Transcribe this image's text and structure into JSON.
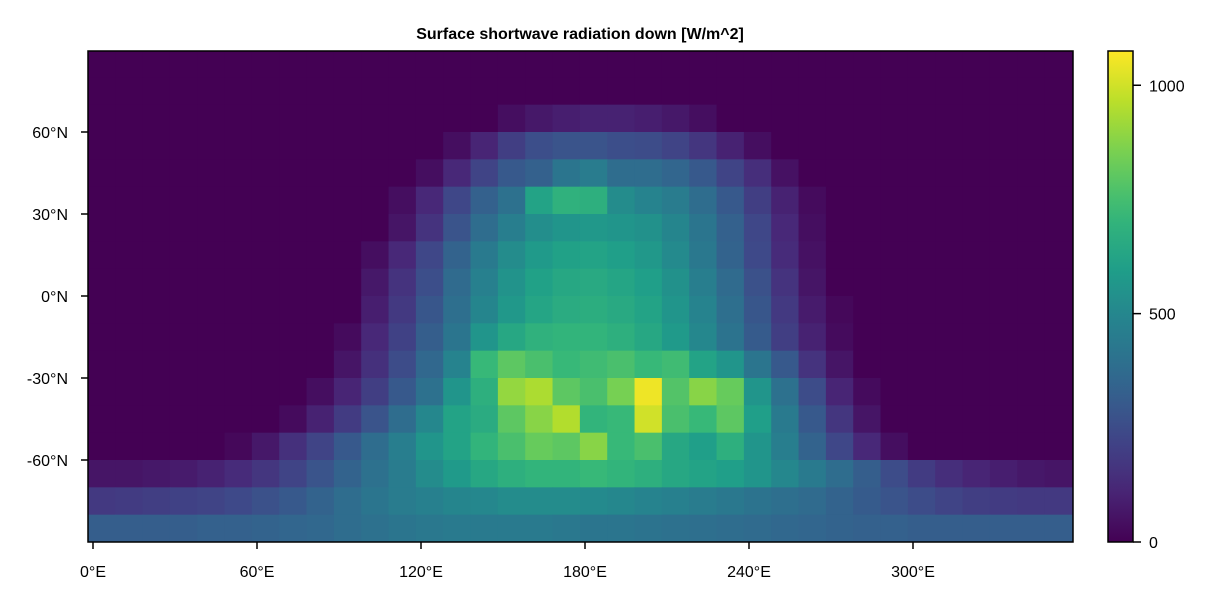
{
  "chart_data": {
    "type": "heatmap",
    "title": "Surface shortwave radiation down [W/m^2]",
    "xlabel": "",
    "ylabel": "",
    "x_ticks": [
      {
        "value": 0,
        "label": "0°E"
      },
      {
        "value": 60,
        "label": "60°E"
      },
      {
        "value": 120,
        "label": "120°E"
      },
      {
        "value": 180,
        "label": "180°E"
      },
      {
        "value": 240,
        "label": "240°E"
      },
      {
        "value": 300,
        "label": "300°E"
      }
    ],
    "y_ticks": [
      {
        "value": 60,
        "label": "60°N"
      },
      {
        "value": 30,
        "label": "30°N"
      },
      {
        "value": 0,
        "label": "0°N"
      },
      {
        "value": -30,
        "label": "-30°N"
      },
      {
        "value": -60,
        "label": "-60°N"
      }
    ],
    "xlim": [
      -1.875,
      358.125
    ],
    "ylim": [
      -90,
      90
    ],
    "lon_start": -1.875,
    "lon_step": 10,
    "lat_centers": [
      85,
      75,
      65,
      55,
      45,
      35,
      25,
      15,
      5,
      -5,
      -15,
      -25,
      -35,
      -45,
      -55,
      -65,
      -75,
      -85
    ],
    "colormap": "viridis",
    "colorbar": {
      "range": [
        0,
        1075
      ],
      "ticks": [
        {
          "value": 0,
          "label": "0"
        },
        {
          "value": 500,
          "label": "500"
        },
        {
          "value": 1000,
          "label": "1000"
        }
      ]
    },
    "values": [
      [
        0,
        0,
        0,
        0,
        0,
        0,
        0,
        0,
        0,
        0,
        0,
        0,
        0,
        0,
        0,
        0,
        0,
        0,
        0,
        0,
        0,
        0,
        0,
        0,
        0,
        0,
        0,
        0,
        0,
        0,
        0,
        0,
        0,
        0,
        0,
        0
      ],
      [
        0,
        0,
        0,
        0,
        0,
        0,
        0,
        0,
        0,
        0,
        0,
        0,
        0,
        0,
        0,
        0,
        0,
        0,
        0,
        0,
        0,
        0,
        0,
        0,
        0,
        0,
        0,
        0,
        0,
        0,
        0,
        0,
        0,
        0,
        0,
        0
      ],
      [
        0,
        0,
        0,
        0,
        0,
        0,
        0,
        0,
        0,
        0,
        0,
        0,
        0,
        0,
        0,
        40,
        70,
        90,
        100,
        100,
        90,
        70,
        40,
        0,
        0,
        0,
        0,
        0,
        0,
        0,
        0,
        0,
        0,
        0,
        0,
        0
      ],
      [
        0,
        0,
        0,
        0,
        0,
        0,
        0,
        0,
        0,
        0,
        0,
        0,
        0,
        40,
        110,
        200,
        260,
        280,
        280,
        260,
        250,
        220,
        170,
        100,
        40,
        0,
        0,
        0,
        0,
        0,
        0,
        0,
        0,
        0,
        0,
        0
      ],
      [
        0,
        0,
        0,
        0,
        0,
        0,
        0,
        0,
        0,
        0,
        0,
        0,
        40,
        120,
        220,
        300,
        330,
        420,
        450,
        380,
        380,
        350,
        300,
        220,
        140,
        50,
        0,
        0,
        0,
        0,
        0,
        0,
        0,
        0,
        0,
        0
      ],
      [
        0,
        0,
        0,
        0,
        0,
        0,
        0,
        0,
        0,
        0,
        0,
        40,
        120,
        230,
        330,
        400,
        620,
        690,
        680,
        520,
        480,
        450,
        380,
        300,
        200,
        100,
        30,
        0,
        0,
        0,
        0,
        0,
        0,
        0,
        0,
        0
      ],
      [
        0,
        0,
        0,
        0,
        0,
        0,
        0,
        0,
        0,
        0,
        0,
        60,
        160,
        280,
        380,
        460,
        530,
        560,
        570,
        560,
        540,
        490,
        420,
        330,
        230,
        120,
        40,
        0,
        0,
        0,
        0,
        0,
        0,
        0,
        0,
        0
      ],
      [
        0,
        0,
        0,
        0,
        0,
        0,
        0,
        0,
        0,
        0,
        40,
        120,
        230,
        340,
        440,
        520,
        580,
        610,
        620,
        600,
        570,
        510,
        430,
        340,
        240,
        130,
        50,
        0,
        0,
        0,
        0,
        0,
        0,
        0,
        0,
        0
      ],
      [
        0,
        0,
        0,
        0,
        0,
        0,
        0,
        0,
        0,
        0,
        70,
        160,
        260,
        370,
        470,
        550,
        610,
        640,
        650,
        630,
        600,
        540,
        460,
        370,
        270,
        160,
        60,
        0,
        0,
        0,
        0,
        0,
        0,
        0,
        0,
        0
      ],
      [
        0,
        0,
        0,
        0,
        0,
        0,
        0,
        0,
        0,
        0,
        90,
        180,
        290,
        390,
        490,
        570,
        630,
        660,
        670,
        650,
        620,
        560,
        480,
        390,
        290,
        180,
        80,
        20,
        0,
        0,
        0,
        0,
        0,
        0,
        0,
        0
      ],
      [
        0,
        0,
        0,
        0,
        0,
        0,
        0,
        0,
        0,
        30,
        120,
        210,
        320,
        420,
        560,
        640,
        690,
        700,
        700,
        680,
        640,
        580,
        500,
        410,
        310,
        200,
        100,
        30,
        0,
        0,
        0,
        0,
        0,
        0,
        0,
        0
      ],
      [
        0,
        0,
        0,
        0,
        0,
        0,
        0,
        0,
        0,
        60,
        150,
        250,
        360,
        480,
        720,
        800,
        760,
        720,
        740,
        760,
        720,
        740,
        620,
        560,
        420,
        300,
        160,
        60,
        0,
        0,
        0,
        0,
        0,
        0,
        0,
        0
      ],
      [
        0,
        0,
        0,
        0,
        0,
        0,
        0,
        0,
        40,
        110,
        200,
        300,
        400,
        560,
        680,
        900,
        940,
        800,
        760,
        850,
        1050,
        780,
        880,
        820,
        560,
        400,
        250,
        110,
        30,
        0,
        0,
        0,
        0,
        0,
        0,
        0
      ],
      [
        0,
        0,
        0,
        0,
        0,
        0,
        0,
        30,
        100,
        190,
        280,
        380,
        500,
        620,
        660,
        800,
        880,
        950,
        700,
        720,
        1000,
        760,
        720,
        800,
        600,
        440,
        300,
        170,
        60,
        0,
        0,
        0,
        0,
        0,
        0,
        0
      ],
      [
        0,
        0,
        0,
        0,
        0,
        20,
        70,
        150,
        220,
        300,
        380,
        460,
        560,
        620,
        700,
        760,
        820,
        800,
        880,
        720,
        760,
        640,
        600,
        680,
        560,
        460,
        340,
        230,
        120,
        40,
        0,
        0,
        0,
        0,
        0,
        0
      ],
      [
        60,
        60,
        70,
        80,
        100,
        130,
        170,
        220,
        280,
        340,
        400,
        450,
        520,
        580,
        640,
        680,
        700,
        700,
        720,
        700,
        680,
        640,
        620,
        600,
        560,
        500,
        440,
        380,
        320,
        250,
        190,
        140,
        110,
        90,
        70,
        60
      ],
      [
        180,
        190,
        200,
        210,
        220,
        240,
        270,
        300,
        340,
        380,
        420,
        450,
        470,
        490,
        500,
        520,
        520,
        520,
        510,
        500,
        480,
        470,
        450,
        430,
        410,
        390,
        370,
        340,
        310,
        280,
        250,
        220,
        200,
        190,
        180,
        180
      ],
      [
        320,
        320,
        320,
        320,
        330,
        330,
        340,
        350,
        360,
        380,
        400,
        420,
        430,
        440,
        440,
        440,
        440,
        430,
        420,
        420,
        410,
        400,
        390,
        380,
        370,
        360,
        350,
        340,
        330,
        330,
        320,
        320,
        320,
        320,
        320,
        320
      ]
    ]
  }
}
